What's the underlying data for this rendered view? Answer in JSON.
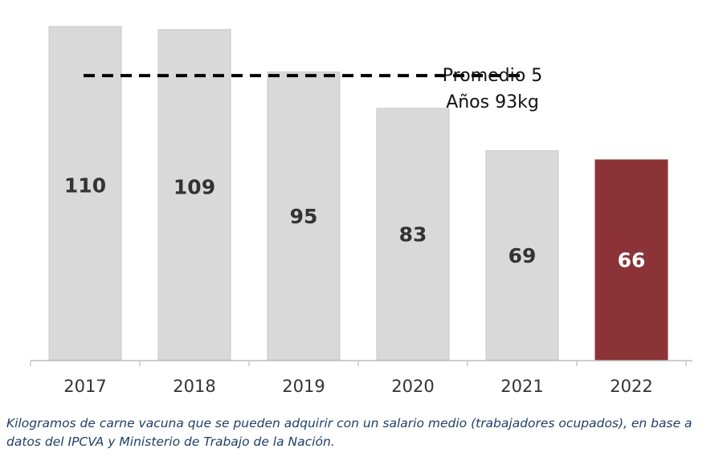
{
  "chart_data": {
    "type": "bar",
    "categories": [
      "2017",
      "2018",
      "2019",
      "2020",
      "2021",
      "2022"
    ],
    "values": [
      110,
      109,
      95,
      83,
      69,
      66
    ],
    "reference_line": {
      "value": 93,
      "label_lines": [
        "Promedio 5",
        "Años 93kg"
      ],
      "style": "dashed"
    },
    "bar_color": "#d9d9d9",
    "highlight_color": "#8b3336",
    "highlight_category": "2022",
    "label_color_default": "#333333",
    "label_color_highlight": "#ffffff",
    "ylim": [
      0,
      110
    ],
    "grid": false
  },
  "caption": "Kilogramos de carne vacuna que se pueden adquirir con un salario medio (trabajadores ocupados), en base a datos del IPCVA y Ministerio de Trabajo de la Nación."
}
